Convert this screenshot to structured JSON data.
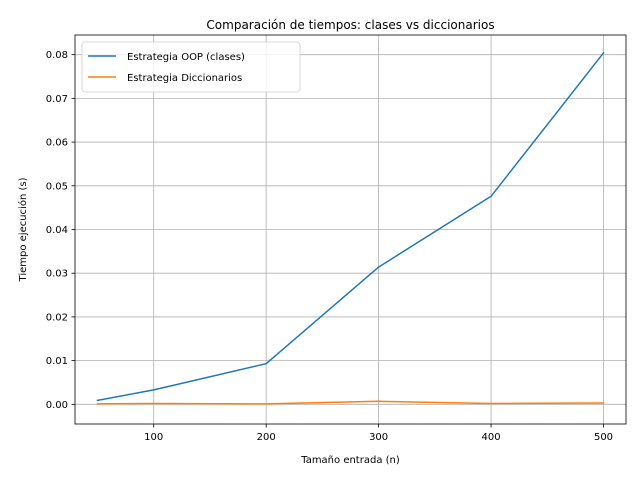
{
  "chart_data": {
    "type": "line",
    "title": "Comparación de tiempos: clases vs diccionarios",
    "xlabel": "Tamaño entrada (n)",
    "ylabel": "Tiempo ejecución (s)",
    "x": [
      50,
      100,
      200,
      300,
      400,
      500
    ],
    "xlim": [
      30,
      520
    ],
    "ylim": [
      -0.0045,
      0.0845
    ],
    "xticks": [
      100,
      200,
      300,
      400,
      500
    ],
    "yticks": [
      0.0,
      0.01,
      0.02,
      0.03,
      0.04,
      0.05,
      0.06,
      0.07,
      0.08
    ],
    "xtick_labels": [
      "100",
      "200",
      "300",
      "400",
      "500"
    ],
    "ytick_labels": [
      "0.00",
      "0.01",
      "0.02",
      "0.03",
      "0.04",
      "0.05",
      "0.06",
      "0.07",
      "0.08"
    ],
    "grid": true,
    "legend_position": "top-left",
    "series": [
      {
        "name": "Estrategia OOP (clases)",
        "color": "#1f77b4",
        "values": [
          0.0009,
          0.0033,
          0.0093,
          0.0314,
          0.0476,
          0.0804
        ]
      },
      {
        "name": "Estrategia Diccionarios",
        "color": "#ff7f0e",
        "values": [
          0.0001,
          0.0002,
          0.0001,
          0.0007,
          0.0002,
          0.0003
        ]
      }
    ]
  }
}
